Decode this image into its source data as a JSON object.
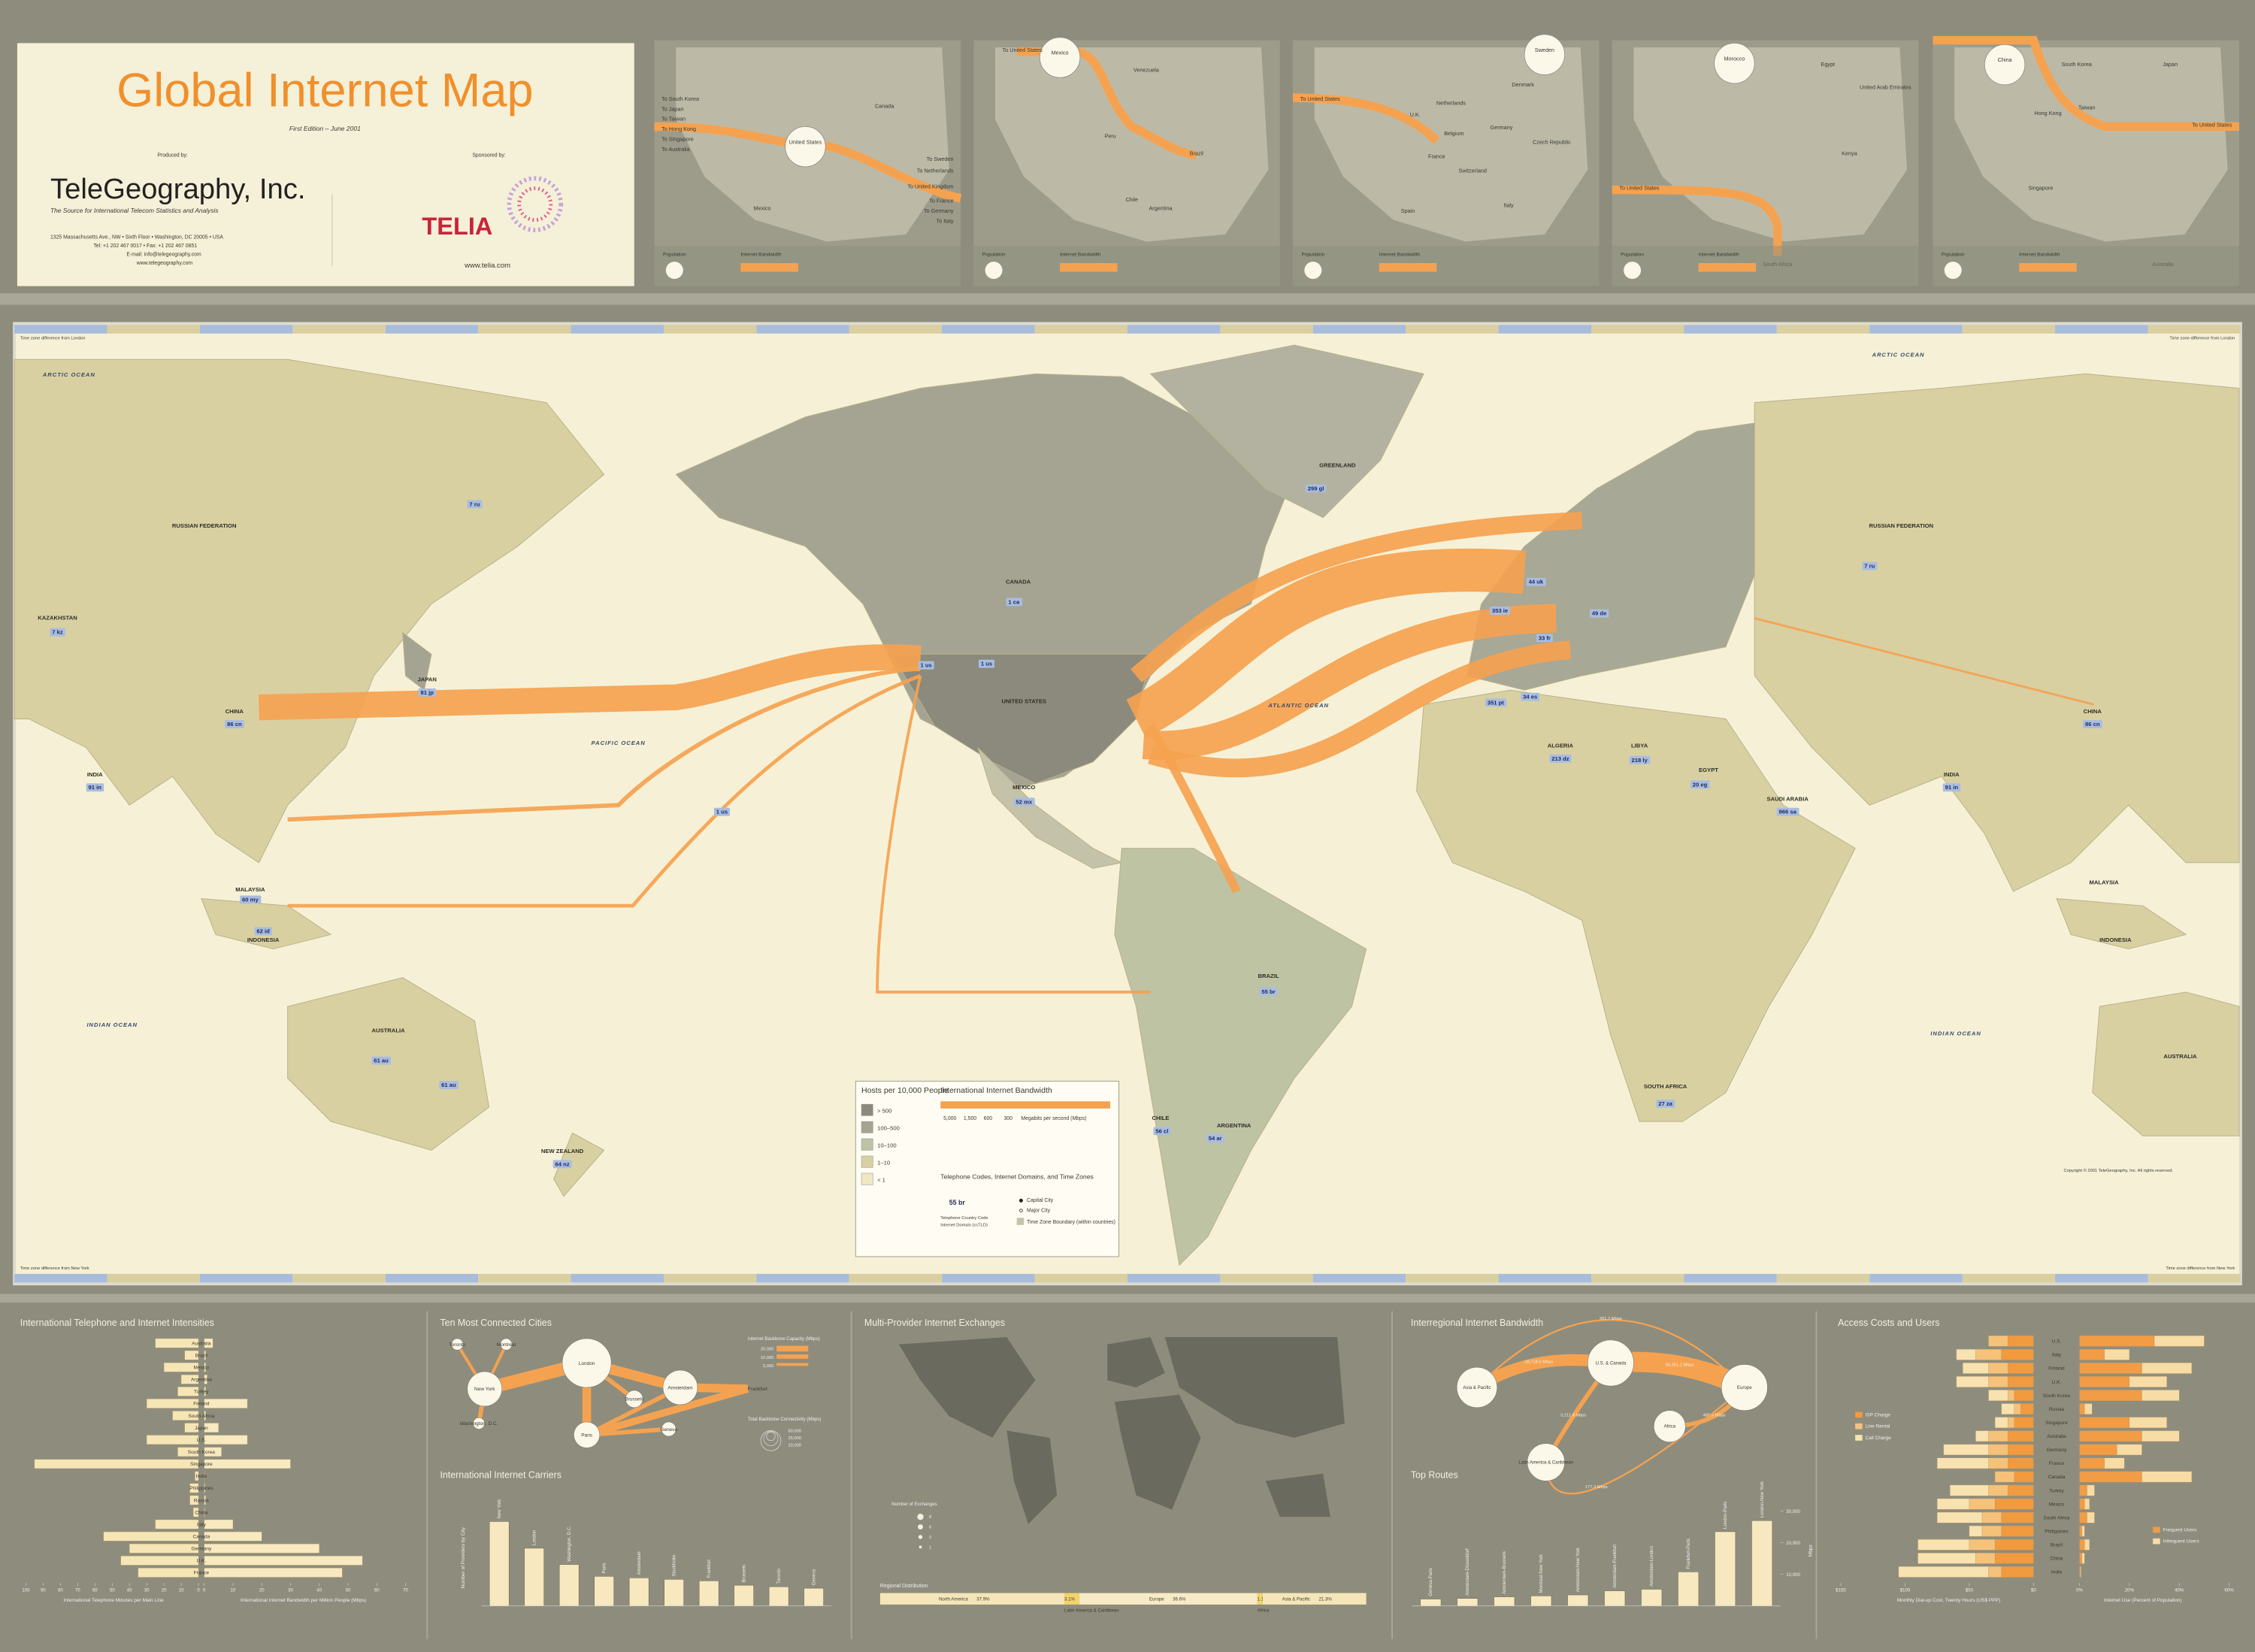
{
  "header": {
    "title": "Global Internet Map",
    "edition": "First Edition – June 2001",
    "produced_by": "Produced by:",
    "company": "TeleGeography, Inc.",
    "tagline": "The Source for International Telecom Statistics and Analysis",
    "address": "1325 Massachusetts Ave., NW • Sixth Floor • Washington, DC 20005 • USA",
    "phone": "Tel: +1 202 467 0017 • Fax: +1 202 467 0851",
    "email": "E-mail: info@telegeography.com",
    "web": "www.telegeography.com",
    "sponsored_by": "Sponsored by:",
    "sponsor": "TELIA",
    "sponsor_web": "www.telia.com"
  },
  "insets": [
    {
      "labels": [
        "United States",
        "Canada",
        "Mexico",
        "To South Korea",
        "To Japan",
        "To Taiwan",
        "To Hong Kong",
        "To Singapore",
        "To Australia",
        "To Sweden",
        "To Netherlands",
        "To United Kingdom",
        "To France",
        "To Germany",
        "To Italy"
      ]
    },
    {
      "labels": [
        "Mexico",
        "Venezuela",
        "Peru",
        "Brazil",
        "Chile",
        "Argentina",
        "To United States"
      ]
    },
    {
      "labels": [
        "Sweden",
        "Denmark",
        "U.K.",
        "Netherlands",
        "Germany",
        "Belgium",
        "France",
        "Czech Republic",
        "Switzerland",
        "Spain",
        "Italy",
        "To United States"
      ]
    },
    {
      "labels": [
        "Morocco",
        "Egypt",
        "United Arab Emirates",
        "Kenya",
        "South Africa",
        "To United States"
      ]
    },
    {
      "labels": [
        "China",
        "South Korea",
        "Japan",
        "Taiwan",
        "Hong Kong",
        "Singapore",
        "Australia",
        "To United States"
      ]
    }
  ],
  "inset_legend": [
    "Population",
    "Internet Bandwidth"
  ],
  "map": {
    "oceans": [
      "ARCTIC OCEAN",
      "PACIFIC OCEAN",
      "ATLANTIC OCEAN",
      "INDIAN OCEAN",
      "INDIAN OCEAN",
      "ARCTIC OCEAN"
    ],
    "countries": [
      "RUSSIAN FEDERATION",
      "RUSSIAN FEDERATION",
      "CANADA",
      "UNITED STATES",
      "GREENLAND",
      "MEXICO",
      "BRAZIL",
      "ARGENTINA",
      "CHILE",
      "CHINA",
      "CHINA",
      "INDIA",
      "INDIA",
      "JAPAN",
      "AUSTRALIA",
      "AUSTRALIA",
      "INDONESIA",
      "INDONESIA",
      "MALAYSIA",
      "MALAYSIA",
      "NEW ZEALAND",
      "ALGERIA",
      "LIBYA",
      "EGYPT",
      "SAUDI ARABIA",
      "SOUTH AFRICA",
      "KAZAKHSTAN"
    ],
    "codes": [
      "7 ru",
      "7 ru",
      "86 cn",
      "86 cn",
      "1 us",
      "1 us",
      "1 us",
      "1 ca",
      "81 jp",
      "91 in",
      "91 in",
      "61 au",
      "61 au",
      "55 br",
      "52 mx",
      "54 ar",
      "56 cl",
      "44 uk",
      "33 fr",
      "49 de",
      "27 za",
      "20 eg",
      "213 dz",
      "218 ly",
      "966 sa",
      "64 nz",
      "299 gl",
      "62 id",
      "60 my",
      "7 kz",
      "353 ie",
      "351 pt",
      "34 es"
    ],
    "time_notes": [
      "Time zone difference from London",
      "Time zone difference from London",
      "Time zone difference from New York",
      "Time zone difference from New York"
    ],
    "copyright": "Copyright © 2001 TeleGeography, Inc. All rights reserved.",
    "legend": {
      "hosts_title": "Hosts per 10,000 People",
      "hosts_bins": [
        "> 500",
        "100–500",
        "10–100",
        "1–10",
        "< 1"
      ],
      "bandwidth_title": "International Internet Bandwidth",
      "bandwidth_widths": [
        "5,000",
        "1,500",
        "600",
        "300"
      ],
      "bandwidth_unit": "Megabits per second (Mbps)",
      "codes_title": "Telephone Codes, Internet Domains, and Time Zones",
      "code_example": "55 br",
      "code_parts": [
        "Telephone Country Code",
        "Internet Domain (ccTLD)"
      ],
      "symbols": [
        "Capital City",
        "Major City",
        "Time Zone Boundary (within countries)"
      ]
    }
  },
  "diagrams": {
    "cities": {
      "title": "Ten Most Connected Cities",
      "nodes": [
        "Toronto",
        "Montreal",
        "New York",
        "Washington, D.C.",
        "London",
        "Amsterdam",
        "Brussels",
        "Paris",
        "Geneva",
        "Frankfurt"
      ],
      "legend_capacity": "Internet Backbone Capacity (Mbps)",
      "capacity_values": [
        "20,000",
        "10,000",
        "5,000"
      ],
      "legend_total": "Total Backbone Connectivity (Mbps)",
      "total_values": [
        "50,000",
        "25,000",
        "10,000"
      ]
    },
    "exchanges": {
      "title": "Multi-Provider Internet Exchanges",
      "legend_title": "Number of Exchanges",
      "legend_values": [
        "8",
        "6",
        "2",
        "1"
      ]
    },
    "interregional": {
      "title": "Interregional Internet Bandwidth",
      "nodes": [
        "Asia & Pacific",
        "U.S. & Canada",
        "Europe",
        "Latin America & Caribbean",
        "Africa"
      ],
      "edges": [
        "261.7 Mbps",
        "18,718.5 Mbps",
        "56,261.2 Mbps",
        "3,211.4 Mbps",
        "485.9 Mbps",
        "177.3 Mbps"
      ]
    }
  },
  "chart_data": [
    {
      "type": "diverging-bar",
      "title": "International Telephone and Internet Intensities",
      "categories": [
        "Australia",
        "Brazil",
        "Mexico",
        "Argentina",
        "Turkey",
        "Finland",
        "South Africa",
        "Japan",
        "U.S.",
        "South Korea",
        "Singapore",
        "India",
        "Philippines",
        "Russia",
        "China",
        "Italy",
        "Canada",
        "Germany",
        "U.K.",
        "France"
      ],
      "series": [
        {
          "axis": "x",
          "color": "#f6e6b6",
          "values": [
            25,
            8,
            20,
            10,
            12,
            30,
            15,
            8,
            30,
            12,
            95,
            2,
            5,
            5,
            3,
            25,
            55,
            40,
            45,
            35
          ]
        },
        {
          "axis": "x2",
          "color": "#f8e9c0",
          "values": [
            3,
            0.5,
            0.5,
            1,
            0.5,
            15,
            0.5,
            5,
            15,
            6,
            30,
            0.1,
            0.3,
            0.5,
            0.2,
            10,
            20,
            40,
            55,
            48
          ]
        }
      ],
      "xlabel": "International Telephone Minutes per Main Line",
      "x2label": "International Internet Bandwidth per Million People (Mbps)",
      "xlim": [
        0,
        100
      ],
      "xticks": [
        0,
        10,
        20,
        30,
        40,
        50,
        60,
        70,
        80,
        90,
        100
      ],
      "x2lim": [
        0,
        70
      ],
      "x2ticks": [
        0,
        10,
        20,
        30,
        40,
        50,
        60,
        70
      ]
    },
    {
      "type": "bar",
      "title": "International Internet Carriers",
      "ylabel": "Number of Providers by City",
      "categories": [
        "New York",
        "London",
        "Washington, D.C.",
        "Paris",
        "Amsterdam",
        "Stockholm",
        "Frankfurt",
        "Brussels",
        "Toronto",
        "Geneva"
      ],
      "values": [
        57,
        39,
        28,
        20,
        19,
        18,
        17,
        14,
        13,
        12
      ],
      "color": "#f7e8c0",
      "ylim": [
        0,
        65
      ]
    },
    {
      "type": "stacked-hbar",
      "title": "Regional Distribution",
      "categories": [
        "North America",
        "Latin America & Caribbean",
        "Europe",
        "Africa",
        "Asia & Pacific"
      ],
      "values": [
        37.9,
        3.1,
        36.6,
        1.1,
        21.3
      ],
      "value_labels": [
        "37.9%",
        "3.1%",
        "36.6%",
        "1.1%",
        "21.3%"
      ],
      "colors": [
        "#f4e6b8",
        "#f3d36a",
        "#f7ebc6",
        "#f3d36a",
        "#f4e6b8"
      ],
      "xlim": [
        0,
        100
      ]
    },
    {
      "type": "bar",
      "title": "Top Routes",
      "ylabel": "Mbps",
      "categories": [
        "Geneva-Paris",
        "Amsterdam-Düsseldorf",
        "Amsterdam-Brussels",
        "Montreal-New York",
        "Amsterdam-New York",
        "Amsterdam-Frankfurt",
        "Amsterdam-London",
        "Frankfurt-Paris",
        "London-Paris",
        "London-New York"
      ],
      "values": [
        2200,
        2400,
        2900,
        3200,
        3500,
        4800,
        5300,
        10800,
        23500,
        27000
      ],
      "color": "#f7e8c0",
      "ylim": [
        0,
        35000
      ],
      "yticks": [
        {
          "value": 10000,
          "label": "10,000"
        },
        {
          "value": 20000,
          "label": "20,000"
        },
        {
          "value": 30000,
          "label": "30,000"
        }
      ]
    },
    {
      "type": "diverging-bar",
      "title": "Access Costs and Users",
      "categories": [
        "U.S.",
        "Italy",
        "Finland",
        "U.K.",
        "South Korea",
        "Russia",
        "Singapore",
        "Australia",
        "Germany",
        "France",
        "Canada",
        "Turkey",
        "Mexico",
        "South Africa",
        "Philippines",
        "Brazil",
        "China",
        "India"
      ],
      "series": [
        {
          "name": "ISP Charge",
          "axis": "x",
          "color": "#f19a3e",
          "values": [
            20,
            25,
            20,
            20,
            15,
            10,
            15,
            20,
            20,
            20,
            15,
            20,
            30,
            25,
            25,
            30,
            30,
            25
          ]
        },
        {
          "name": "Line Rental",
          "axis": "x",
          "color": "#f6c27a",
          "values": [
            15,
            20,
            15,
            15,
            5,
            5,
            5,
            15,
            15,
            15,
            15,
            15,
            20,
            15,
            15,
            20,
            15,
            10
          ]
        },
        {
          "name": "Call Charge",
          "axis": "x",
          "color": "#f8e2b0",
          "values": [
            0,
            15,
            20,
            25,
            15,
            10,
            10,
            10,
            35,
            40,
            0,
            30,
            25,
            35,
            10,
            40,
            45,
            70
          ]
        },
        {
          "name": "Frequent Users",
          "axis": "x2",
          "color": "#f29c45",
          "values": [
            30,
            10,
            25,
            20,
            25,
            2,
            20,
            25,
            15,
            10,
            25,
            3,
            2,
            3,
            1,
            2,
            1,
            0.3
          ]
        },
        {
          "name": "Infrequent Users",
          "axis": "x2",
          "color": "#f8dca5",
          "values": [
            20,
            10,
            20,
            15,
            15,
            3,
            15,
            15,
            10,
            8,
            20,
            3,
            2,
            3,
            1,
            2,
            1,
            0.3
          ]
        }
      ],
      "xlabel": "Monthly Dial-up Cost, Twenty Hours (US$ PPP)",
      "x2label": "Internet Use (Percent of Population)",
      "xlim": [
        0,
        150
      ],
      "xticks": [
        {
          "value": 0,
          "label": "$0"
        },
        {
          "value": 50,
          "label": "$50"
        },
        {
          "value": 100,
          "label": "$100"
        },
        {
          "value": 150,
          "label": "$150"
        }
      ],
      "x2lim": [
        0,
        60
      ],
      "x2ticks": [
        {
          "value": 0,
          "label": "0%"
        },
        {
          "value": 20,
          "label": "20%"
        },
        {
          "value": 40,
          "label": "40%"
        },
        {
          "value": 60,
          "label": "60%"
        }
      ]
    }
  ]
}
